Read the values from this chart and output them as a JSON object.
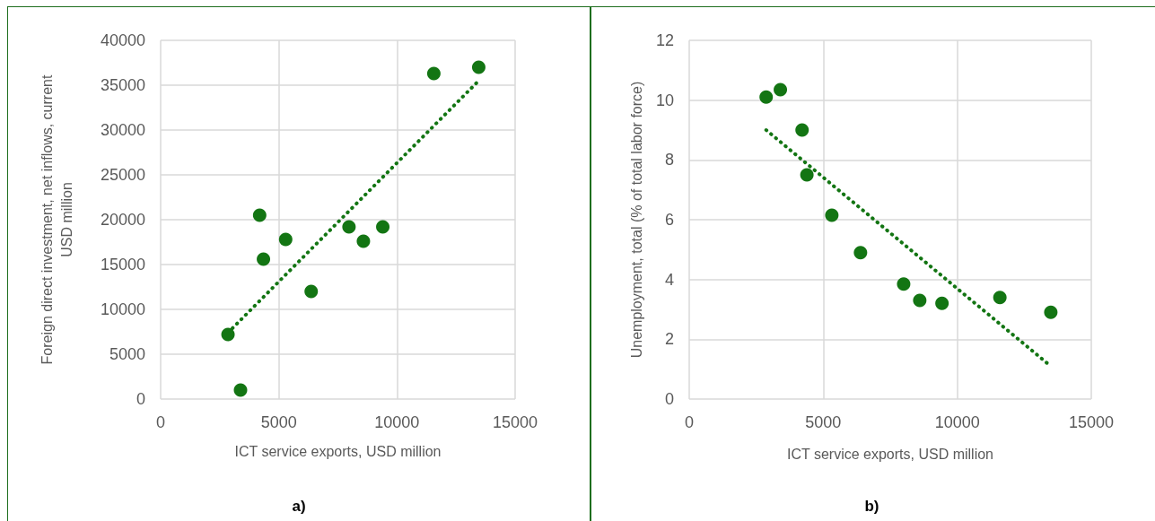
{
  "chart_data": [
    {
      "type": "scatter",
      "xlabel": "ICT service exports, USD million",
      "ylabel": "Foreign direct investment, net inflows, current USD million",
      "annotations": [
        "a)"
      ],
      "xlim": [
        0,
        15000
      ],
      "xticks": [
        0,
        5000,
        10000,
        15000
      ],
      "ylim": [
        0,
        40000
      ],
      "yticks": [
        0,
        5000,
        10000,
        15000,
        20000,
        25000,
        30000,
        35000,
        40000
      ],
      "grid": true,
      "series": [
        {
          "type": "scatter",
          "color": "#137513",
          "marker": "circle",
          "x": [
            2850,
            3380,
            4190,
            4350,
            5290,
            6370,
            7970,
            8580,
            9400,
            11560,
            13460
          ],
          "values": [
            7200,
            1000,
            20500,
            15600,
            17800,
            12000,
            19200,
            17600,
            19200,
            36300,
            37000
          ]
        },
        {
          "type": "line",
          "color": "#137513",
          "line_style": "dotted",
          "marker": "none",
          "x": [
            2850,
            13460
          ],
          "values": [
            7400,
            35500
          ]
        }
      ]
    },
    {
      "type": "scatter",
      "xlabel": "ICT service exports, USD million",
      "ylabel": "Unemployment, total (% of total labor force)",
      "annotations": [
        "b)"
      ],
      "xlim": [
        0,
        15000
      ],
      "xticks": [
        0,
        5000,
        10000,
        15000
      ],
      "ylim": [
        0,
        12
      ],
      "yticks": [
        0,
        2,
        4,
        6,
        8,
        10,
        12
      ],
      "grid": true,
      "series": [
        {
          "type": "scatter",
          "color": "#137513",
          "marker": "circle",
          "x": [
            2870,
            3400,
            4210,
            4390,
            5320,
            6390,
            8000,
            8600,
            9430,
            11590,
            13490
          ],
          "values": [
            10.1,
            10.35,
            9.0,
            7.5,
            6.15,
            4.9,
            3.85,
            3.3,
            3.2,
            3.4,
            2.9
          ]
        },
        {
          "type": "line",
          "color": "#137513",
          "line_style": "dotted",
          "marker": "none",
          "x": [
            2870,
            13490
          ],
          "values": [
            9.0,
            1.1
          ]
        }
      ]
    }
  ]
}
